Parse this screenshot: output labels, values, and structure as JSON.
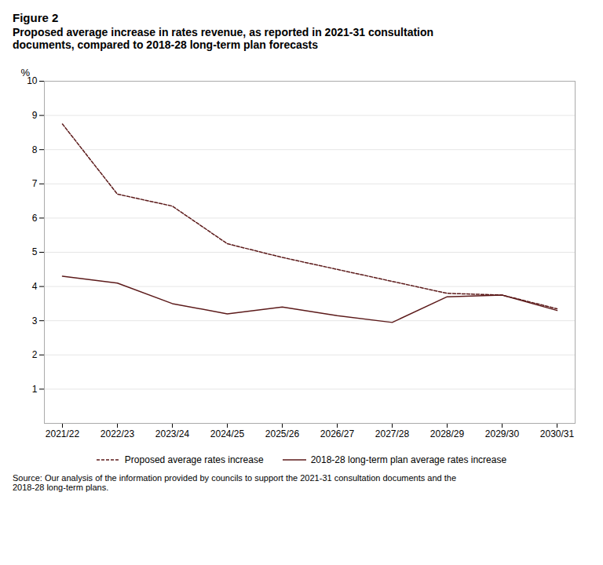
{
  "chart_data": {
    "type": "line",
    "title": "Figure 2",
    "subtitle": "Proposed average increase in rates revenue, as reported in 2021-31 consultation\ndocuments, compared to 2018-28 long-term plan forecasts",
    "caption": "Source: Our analysis of the information provided by councils to support the 2021-31 consultation documents and the\n2018-28 long-term plans.",
    "categories": [
      "2021/22",
      "2022/23",
      "2023/24",
      "2024/25",
      "2025/26",
      "2026/27",
      "2027/28",
      "2028/29",
      "2029/30",
      "2030/31"
    ],
    "series": [
      {
        "name": "Proposed average rates increase",
        "color": "#5C1A1A",
        "line_style": "dashed",
        "values": [
          8.75,
          6.7,
          6.35,
          5.25,
          4.85,
          4.5,
          4.15,
          3.8,
          3.75,
          3.35
        ]
      },
      {
        "name": "2018-28 long-term plan average rates increase",
        "color": "#5C1A1A",
        "line_style": "solid",
        "values": [
          4.3,
          4.1,
          3.5,
          3.2,
          3.4,
          3.15,
          2.95,
          3.7,
          3.75,
          3.3
        ]
      }
    ],
    "ylabel": "%",
    "ylim": [
      0,
      10
    ],
    "yticks": [
      1,
      2,
      3,
      4,
      5,
      6,
      7,
      8,
      9,
      10
    ],
    "grid": true,
    "legend": "bottom"
  }
}
